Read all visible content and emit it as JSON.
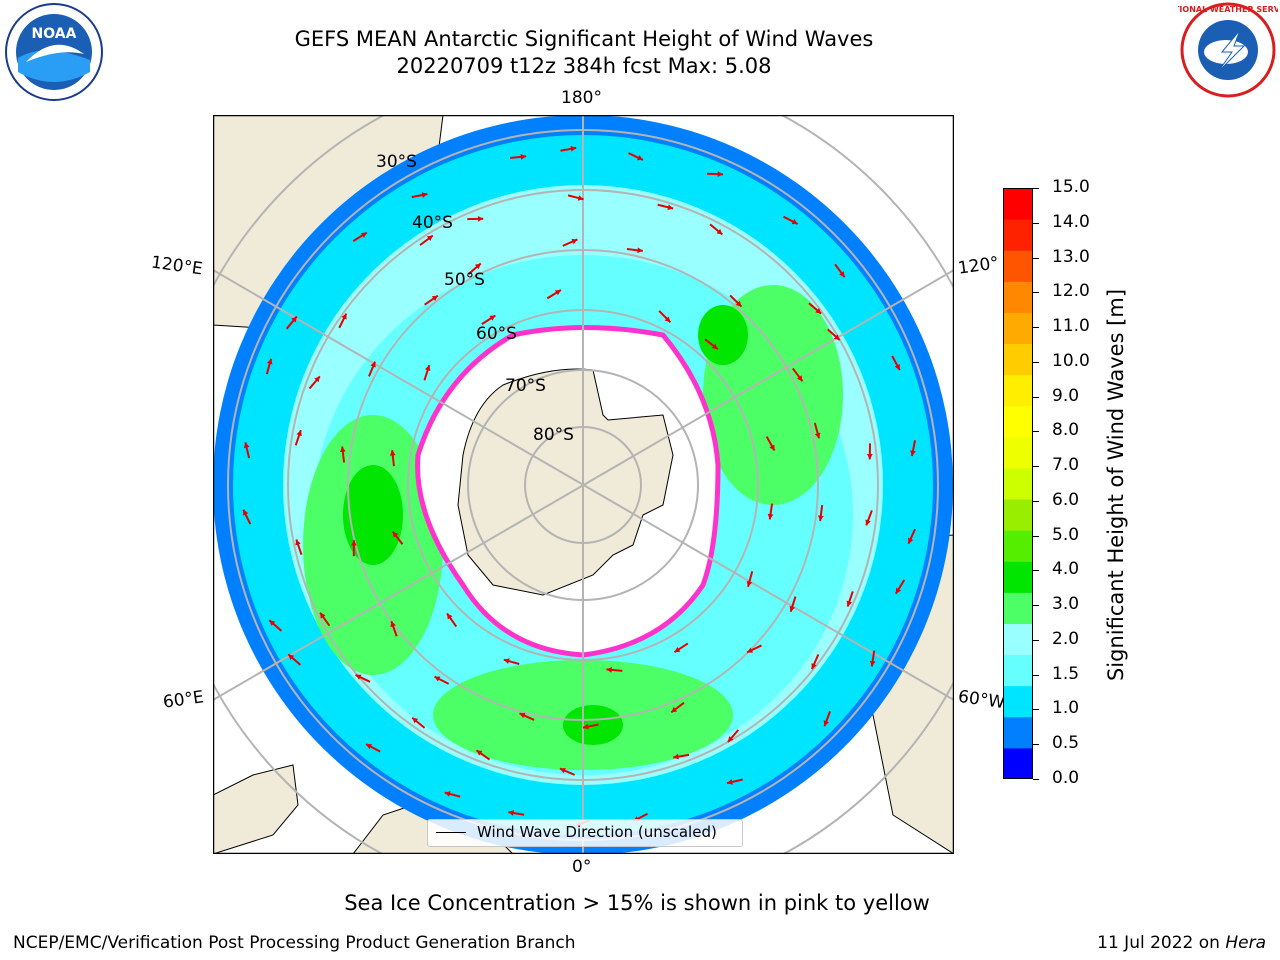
{
  "title": {
    "line1": "GEFS MEAN Antarctic Significant Height of Wind Waves",
    "line2": "20220709 t12z 384h fcst   Max: 5.08"
  },
  "map": {
    "meridian_labels": {
      "top": "180°",
      "bottom": "0°",
      "upper_left": "120°E",
      "upper_right": "120°",
      "lower_left": "60°E",
      "lower_right": "60°W"
    },
    "latitude_labels": [
      "30°S",
      "40°S",
      "50°S",
      "60°S",
      "70°S",
      "80°S"
    ],
    "legend": "Wind Wave Direction (unscaled)",
    "colors": {
      "land": "#efebd8",
      "ice_zone": "#ffffff",
      "sea_ice_edge": "#ff33cc",
      "arrow": "#e60000",
      "grid": "#b4b4b4"
    }
  },
  "colorbar": {
    "title": "Significant Height of Wind Waves [m]",
    "ticks": [
      "15.0",
      "14.0",
      "13.0",
      "12.0",
      "11.0",
      "10.0",
      "9.0",
      "8.0",
      "7.0",
      "6.0",
      "5.0",
      "4.0",
      "3.0",
      "2.0",
      "1.5",
      "1.0",
      "0.5",
      "0.0"
    ],
    "colors": [
      "#0000ff",
      "#0080ff",
      "#00e5ff",
      "#66ffff",
      "#99ffff",
      "#4dff66",
      "#00e600",
      "#55ee00",
      "#99ee00",
      "#ccff00",
      "#eeff00",
      "#ffff00",
      "#ffee00",
      "#ffcc00",
      "#ffaa00",
      "#ff8800",
      "#ff5500",
      "#ff2200",
      "#ff0000"
    ]
  },
  "subfooter": "Sea Ice Concentration > 15% is shown in pink to yellow",
  "footer": {
    "left": "NCEP/EMC/Verification Post Processing Product Generation Branch",
    "right_date": "11 Jul 2022 on",
    "right_machine": "Hera"
  },
  "logos": {
    "noaa_text": "NOAA",
    "nws_text": "NATIONAL WEATHER SERVICE"
  }
}
